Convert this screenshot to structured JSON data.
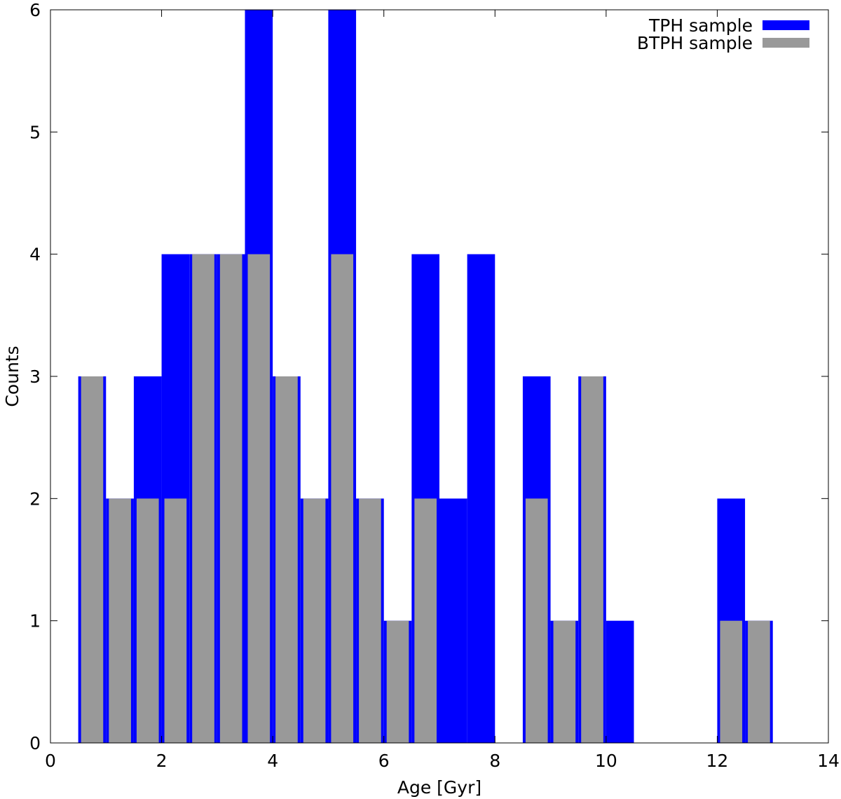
{
  "chart_data": {
    "type": "bar",
    "title": "",
    "xlabel": "Age [Gyr]",
    "ylabel": "Counts",
    "xlim": [
      0,
      14
    ],
    "ylim": [
      0,
      6
    ],
    "xticks": [
      0,
      2,
      4,
      6,
      8,
      10,
      12,
      14
    ],
    "yticks": [
      0,
      1,
      2,
      3,
      4,
      5,
      6
    ],
    "bin_width": 0.5,
    "grid": false,
    "legend_position": "top-right",
    "bin_starts": [
      0,
      0.5,
      1,
      1.5,
      2,
      2.5,
      3,
      3.5,
      4,
      4.5,
      5,
      5.5,
      6,
      6.5,
      7,
      7.5,
      8,
      8.5,
      9,
      9.5,
      10,
      10.5,
      11,
      11.5,
      12,
      12.5
    ],
    "series": [
      {
        "name": "TPH sample",
        "color": "#0000ff",
        "values": [
          0,
          3,
          2,
          3,
          4,
          4,
          4,
          6,
          3,
          2,
          6,
          2,
          1,
          4,
          2,
          4,
          0,
          3,
          1,
          3,
          1,
          0,
          0,
          0,
          2,
          1
        ]
      },
      {
        "name": "BTPH sample",
        "color": "#999999",
        "values": [
          0,
          3,
          2,
          2,
          2,
          4,
          4,
          4,
          3,
          2,
          4,
          2,
          1,
          2,
          0,
          0,
          0,
          2,
          1,
          3,
          0,
          0,
          0,
          0,
          1,
          1
        ]
      }
    ]
  }
}
